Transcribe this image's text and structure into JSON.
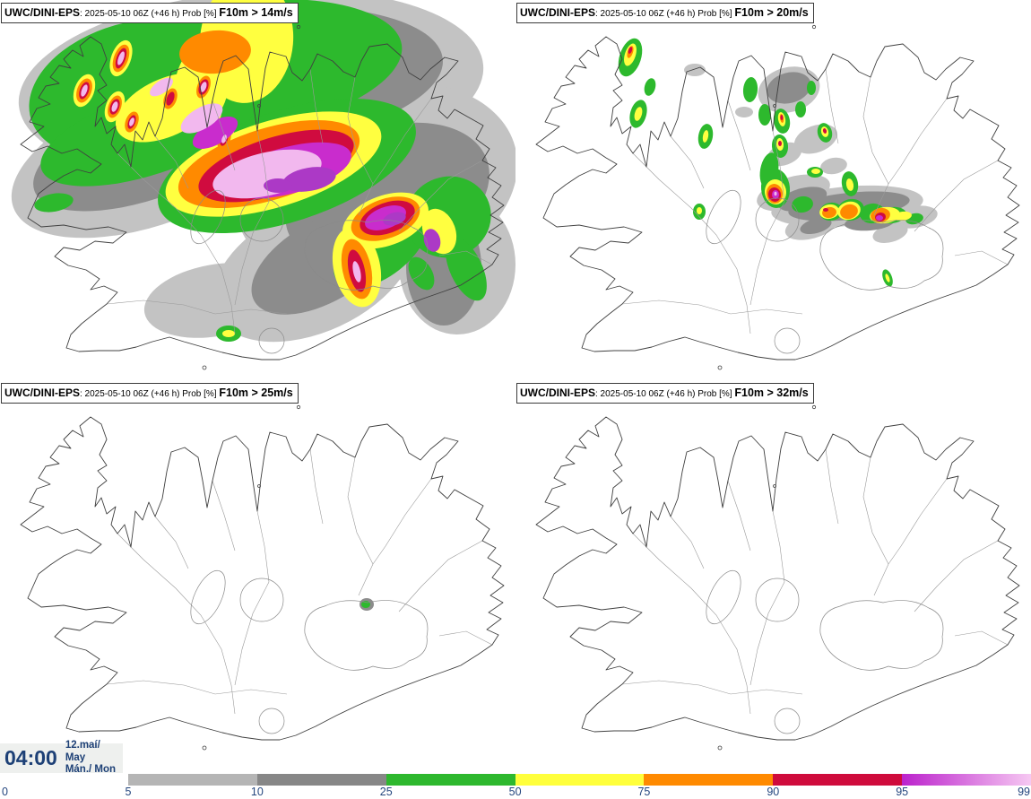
{
  "panels": [
    {
      "model": "UWC/DINI-EPS",
      "run": ": 2025-05-10 06Z (+46 h) Prob [%] ",
      "threshold": "F10m > 14m/s"
    },
    {
      "model": "UWC/DINI-EPS",
      "run": ": 2025-05-10 06Z (+46 h) Prob [%] ",
      "threshold": "F10m > 20m/s"
    },
    {
      "model": "UWC/DINI-EPS",
      "run": ": 2025-05-10 06Z (+46 h) Prob [%] ",
      "threshold": "F10m > 25m/s"
    },
    {
      "model": "UWC/DINI-EPS",
      "run": ": 2025-05-10 06Z (+46 h) Prob [%] ",
      "threshold": "F10m > 32m/s"
    }
  ],
  "clock": {
    "time": "04:00",
    "date_line1": "12.maí/ May",
    "date_line2": "Mán./ Mon",
    "text_color": "#1d4076",
    "background": "#eef0ee"
  },
  "legend": {
    "tick_labels": [
      "0",
      "5",
      "10",
      "25",
      "50",
      "75",
      "90",
      "95",
      "99"
    ],
    "label_color": "#25477f",
    "segments": [
      {
        "range": "5-10",
        "color": "#b5b5b5"
      },
      {
        "range": "10-25",
        "color": "#878787"
      },
      {
        "range": "25-50",
        "color": "#2eb82e"
      },
      {
        "range": "50-75",
        "color": "#ffff3c"
      },
      {
        "range": "75-90",
        "color": "#ff8a00"
      },
      {
        "range": "90-95",
        "color": "#cf0b3c"
      },
      {
        "range": "95-99",
        "gradient_from": "#bb22cc",
        "gradient_to": "#f6c8f2"
      }
    ]
  },
  "field_colors": {
    "gray_light": "#c3c3c3",
    "gray_dark": "#8c8c8c",
    "green": "#2db92d",
    "yellow": "#ffff40",
    "orange": "#ff8a00",
    "red": "#d00b3f",
    "magenta": "#c92ccd",
    "pink": "#f2b8ee",
    "purple": "#ac39c6"
  },
  "map_line_colors": {
    "coastline": "#404040",
    "boundaries": "#9a9a9a",
    "glaciers": "#8a8a8a"
  }
}
